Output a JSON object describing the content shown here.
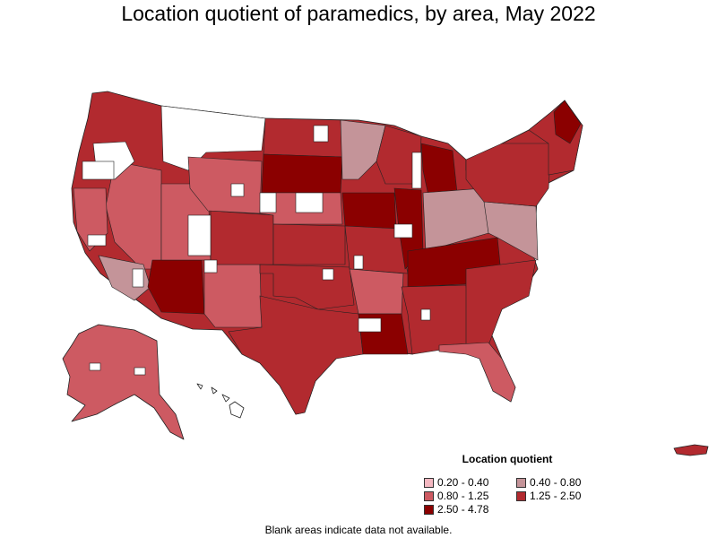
{
  "title": "Location quotient of paramedics, by area, May 2022",
  "legend": {
    "title": "Location quotient",
    "items": [
      {
        "label": "0.20 - 0.40",
        "color": "#f4b8c1"
      },
      {
        "label": "0.40 - 0.80",
        "color": "#c49499"
      },
      {
        "label": "0.80 - 1.25",
        "color": "#cd5a62"
      },
      {
        "label": "1.25 - 2.50",
        "color": "#b22a2f"
      },
      {
        "label": "2.50 - 4.78",
        "color": "#8b0000"
      }
    ]
  },
  "footnote": "Blank areas indicate data not available.",
  "colors": {
    "no_data": "#ffffff",
    "border": "#000000"
  }
}
